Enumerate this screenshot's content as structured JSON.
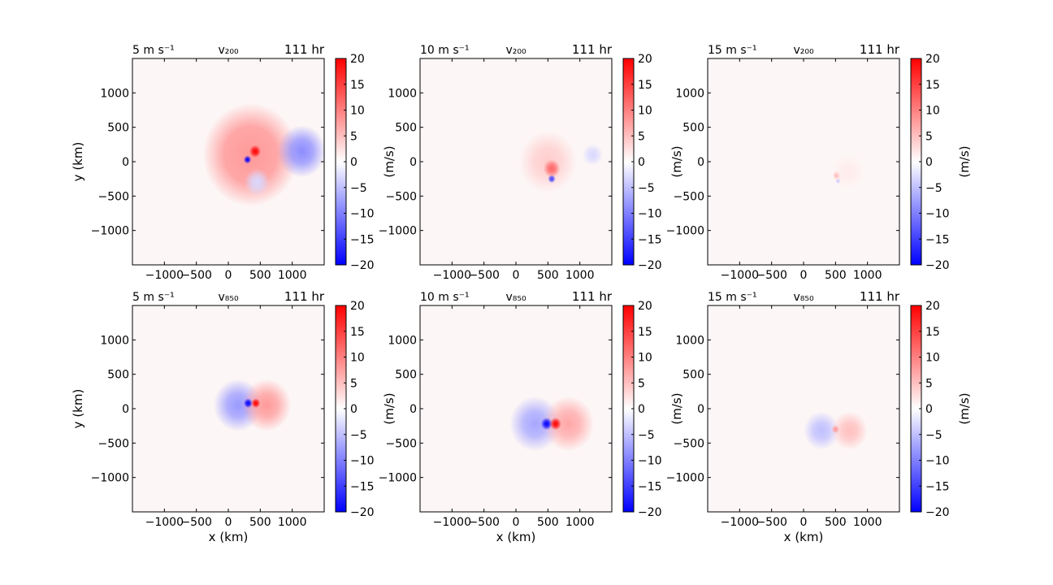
{
  "figure": {
    "colorbar": {
      "ticks": [
        "20",
        "15",
        "10",
        "5",
        "0",
        "−5",
        "−10",
        "−15",
        "−20"
      ],
      "label": "(m/s)",
      "range": [
        -20,
        20
      ],
      "colormap": [
        "#0000ff",
        "#ffffff",
        "#ff0000"
      ]
    },
    "x_ticks": [
      "−1000",
      "−500",
      "0",
      "500",
      "1000"
    ],
    "y_ticks": [
      "1000",
      "500",
      "0",
      "−500",
      "−1000"
    ],
    "xlabel": "x (km)",
    "ylabel": "y (km)"
  },
  "chart_data": [
    {
      "type": "heatmap",
      "title_left": "5 m s⁻¹",
      "title_center": "v₂₀₀",
      "title_right": "111 hr",
      "xlim": [
        -1500,
        1500
      ],
      "ylim": [
        -1500,
        1500
      ],
      "values_range": [
        -20,
        20
      ],
      "features": [
        {
          "kind": "gradient-ring",
          "center": [
            350,
            100
          ],
          "radius_km": 750,
          "value": 8
        },
        {
          "kind": "blob",
          "center": [
            420,
            150
          ],
          "radius_km": 90,
          "value": 20
        },
        {
          "kind": "blob",
          "center": [
            300,
            30
          ],
          "radius_km": 60,
          "value": -20
        },
        {
          "kind": "blob",
          "center": [
            1150,
            150
          ],
          "radius_km": 380,
          "value": -9
        },
        {
          "kind": "blob",
          "center": [
            450,
            -300
          ],
          "radius_km": 200,
          "value": -3
        }
      ]
    },
    {
      "type": "heatmap",
      "title_left": "10 m s⁻¹",
      "title_center": "v₂₀₀",
      "title_right": "111 hr",
      "xlim": [
        -1500,
        1500
      ],
      "ylim": [
        -1500,
        1500
      ],
      "values_range": [
        -20,
        20
      ],
      "features": [
        {
          "kind": "blob",
          "center": [
            500,
            0
          ],
          "radius_km": 450,
          "value": 4
        },
        {
          "kind": "blob",
          "center": [
            560,
            -100
          ],
          "radius_km": 130,
          "value": 12
        },
        {
          "kind": "blob",
          "center": [
            560,
            -250
          ],
          "radius_km": 60,
          "value": -15
        },
        {
          "kind": "blob",
          "center": [
            1200,
            100
          ],
          "radius_km": 160,
          "value": -3
        }
      ]
    },
    {
      "type": "heatmap",
      "title_left": "15 m s⁻¹",
      "title_center": "v₂₀₀",
      "title_right": "111 hr",
      "xlim": [
        -1500,
        1500
      ],
      "ylim": [
        -1500,
        1500
      ],
      "values_range": [
        -20,
        20
      ],
      "features": [
        {
          "kind": "blob",
          "center": [
            520,
            -200
          ],
          "radius_km": 60,
          "value": 7
        },
        {
          "kind": "blob",
          "center": [
            540,
            -280
          ],
          "radius_km": 40,
          "value": -5
        },
        {
          "kind": "blob",
          "center": [
            700,
            -150
          ],
          "radius_km": 250,
          "value": 1.5
        }
      ]
    },
    {
      "type": "heatmap",
      "title_left": "5 m s⁻¹",
      "title_center": "v₈₅₀",
      "title_right": "111 hr",
      "xlim": [
        -1500,
        1500
      ],
      "ylim": [
        -1500,
        1500
      ],
      "values_range": [
        -20,
        20
      ],
      "features": [
        {
          "kind": "blob",
          "center": [
            150,
            50
          ],
          "radius_km": 380,
          "value": -8
        },
        {
          "kind": "blob",
          "center": [
            600,
            50
          ],
          "radius_km": 380,
          "value": 8
        },
        {
          "kind": "blob",
          "center": [
            310,
            80
          ],
          "radius_km": 70,
          "value": -20
        },
        {
          "kind": "blob",
          "center": [
            430,
            80
          ],
          "radius_km": 70,
          "value": 20
        }
      ]
    },
    {
      "type": "heatmap",
      "title_left": "10 m s⁻¹",
      "title_center": "v₈₅₀",
      "title_right": "111 hr",
      "xlim": [
        -1500,
        1500
      ],
      "ylim": [
        -1500,
        1500
      ],
      "values_range": [
        -20,
        20
      ],
      "features": [
        {
          "kind": "blob",
          "center": [
            300,
            -220
          ],
          "radius_km": 400,
          "value": -7
        },
        {
          "kind": "blob",
          "center": [
            820,
            -220
          ],
          "radius_km": 400,
          "value": 7
        },
        {
          "kind": "blob",
          "center": [
            480,
            -220
          ],
          "radius_km": 90,
          "value": -20
        },
        {
          "kind": "blob",
          "center": [
            620,
            -220
          ],
          "radius_km": 90,
          "value": 20
        }
      ]
    },
    {
      "type": "heatmap",
      "title_left": "15 m s⁻¹",
      "title_center": "v₈₅₀",
      "title_right": "111 hr",
      "xlim": [
        -1500,
        1500
      ],
      "ylim": [
        -1500,
        1500
      ],
      "values_range": [
        -20,
        20
      ],
      "features": [
        {
          "kind": "blob",
          "center": [
            280,
            -320
          ],
          "radius_km": 280,
          "value": -5
        },
        {
          "kind": "blob",
          "center": [
            720,
            -320
          ],
          "radius_km": 280,
          "value": 5
        },
        {
          "kind": "blob",
          "center": [
            500,
            -300
          ],
          "radius_km": 60,
          "value": 8
        }
      ]
    }
  ]
}
